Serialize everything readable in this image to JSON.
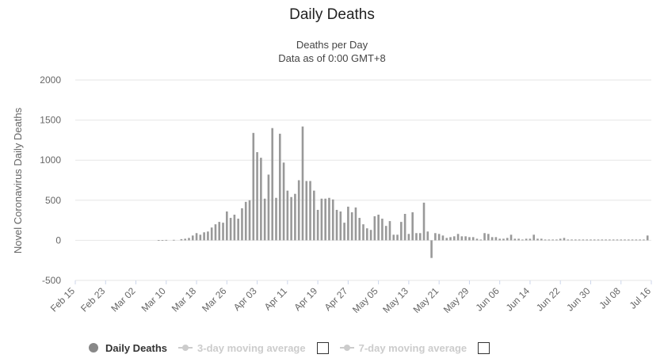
{
  "colors": {
    "bar": "#999999",
    "grid": "#e6e6e6",
    "axis_text": "#666666"
  },
  "legend": {
    "items": [
      {
        "label": "Daily Deaths",
        "active": true
      },
      {
        "label": "3-day moving average",
        "active": false
      },
      {
        "label": "7-day moving average",
        "active": false
      }
    ]
  },
  "chart_data": {
    "type": "bar",
    "title": "Daily Deaths",
    "subtitle": [
      "Deaths per Day",
      "Data as of 0:00 GMT+8"
    ],
    "ylabel": "Novel Coronavirus Daily Deaths",
    "xlabel": "",
    "ylim": [
      -500,
      2000
    ],
    "yticks": [
      -500,
      0,
      500,
      1000,
      1500,
      2000
    ],
    "xlim": [
      "2020-02-15",
      "2020-07-16"
    ],
    "xticks": [
      "Feb 15",
      "Feb 23",
      "Mar 02",
      "Mar 10",
      "Mar 18",
      "Mar 26",
      "Apr 03",
      "Apr 11",
      "Apr 19",
      "Apr 27",
      "May 05",
      "May 13",
      "May 21",
      "May 29",
      "Jun 06",
      "Jun 14",
      "Jun 22",
      "Jun 30",
      "Jul 08",
      "Jul 16"
    ],
    "grid": true,
    "legend_position": "bottom",
    "series": [
      {
        "name": "Daily Deaths",
        "x": [
          "2020-03-08",
          "2020-03-09",
          "2020-03-10",
          "2020-03-12",
          "2020-03-14",
          "2020-03-15",
          "2020-03-16",
          "2020-03-17",
          "2020-03-18",
          "2020-03-19",
          "2020-03-20",
          "2020-03-21",
          "2020-03-22",
          "2020-03-23",
          "2020-03-24",
          "2020-03-25",
          "2020-03-26",
          "2020-03-27",
          "2020-03-28",
          "2020-03-29",
          "2020-03-30",
          "2020-03-31",
          "2020-04-01",
          "2020-04-02",
          "2020-04-03",
          "2020-04-04",
          "2020-04-05",
          "2020-04-06",
          "2020-04-07",
          "2020-04-08",
          "2020-04-09",
          "2020-04-10",
          "2020-04-11",
          "2020-04-12",
          "2020-04-13",
          "2020-04-14",
          "2020-04-15",
          "2020-04-16",
          "2020-04-17",
          "2020-04-18",
          "2020-04-19",
          "2020-04-20",
          "2020-04-21",
          "2020-04-22",
          "2020-04-23",
          "2020-04-24",
          "2020-04-25",
          "2020-04-26",
          "2020-04-27",
          "2020-04-28",
          "2020-04-29",
          "2020-04-30",
          "2020-05-01",
          "2020-05-02",
          "2020-05-03",
          "2020-05-04",
          "2020-05-05",
          "2020-05-06",
          "2020-05-07",
          "2020-05-08",
          "2020-05-09",
          "2020-05-10",
          "2020-05-11",
          "2020-05-12",
          "2020-05-13",
          "2020-05-14",
          "2020-05-15",
          "2020-05-16",
          "2020-05-17",
          "2020-05-18",
          "2020-05-19",
          "2020-05-20",
          "2020-05-21",
          "2020-05-22",
          "2020-05-23",
          "2020-05-24",
          "2020-05-25",
          "2020-05-26",
          "2020-05-27",
          "2020-05-28",
          "2020-05-29",
          "2020-05-30",
          "2020-05-31",
          "2020-06-01",
          "2020-06-02",
          "2020-06-03",
          "2020-06-04",
          "2020-06-05",
          "2020-06-06",
          "2020-06-07",
          "2020-06-08",
          "2020-06-09",
          "2020-06-10",
          "2020-06-11",
          "2020-06-12",
          "2020-06-13",
          "2020-06-14",
          "2020-06-15",
          "2020-06-16",
          "2020-06-17",
          "2020-06-18",
          "2020-06-19",
          "2020-06-20",
          "2020-06-21",
          "2020-06-22",
          "2020-06-23",
          "2020-06-24",
          "2020-06-25",
          "2020-06-26",
          "2020-06-27",
          "2020-06-28",
          "2020-06-29",
          "2020-06-30",
          "2020-07-01",
          "2020-07-02",
          "2020-07-03",
          "2020-07-04",
          "2020-07-05",
          "2020-07-06",
          "2020-07-07",
          "2020-07-08",
          "2020-07-09",
          "2020-07-10",
          "2020-07-11",
          "2020-07-12",
          "2020-07-13",
          "2020-07-14",
          "2020-07-15"
        ],
        "values": [
          3,
          4,
          5,
          6,
          15,
          20,
          30,
          60,
          90,
          70,
          100,
          110,
          160,
          200,
          230,
          220,
          360,
          280,
          320,
          270,
          400,
          480,
          500,
          1340,
          1100,
          1030,
          520,
          820,
          1400,
          530,
          1330,
          970,
          620,
          540,
          580,
          750,
          1420,
          740,
          740,
          620,
          380,
          520,
          520,
          530,
          510,
          380,
          360,
          220,
          420,
          350,
          410,
          280,
          200,
          150,
          130,
          300,
          320,
          270,
          180,
          240,
          70,
          70,
          230,
          330,
          80,
          350,
          90,
          90,
          470,
          110,
          -220,
          90,
          80,
          60,
          30,
          40,
          50,
          80,
          50,
          50,
          40,
          40,
          20,
          10,
          90,
          80,
          40,
          40,
          20,
          20,
          30,
          70,
          20,
          20,
          10,
          20,
          20,
          70,
          20,
          20,
          10,
          10,
          10,
          10,
          20,
          30,
          10,
          10,
          10,
          10,
          10,
          10,
          10,
          10,
          10,
          10,
          10,
          10,
          10,
          10,
          10,
          10,
          10,
          10,
          10,
          10,
          10,
          60
        ]
      }
    ]
  }
}
